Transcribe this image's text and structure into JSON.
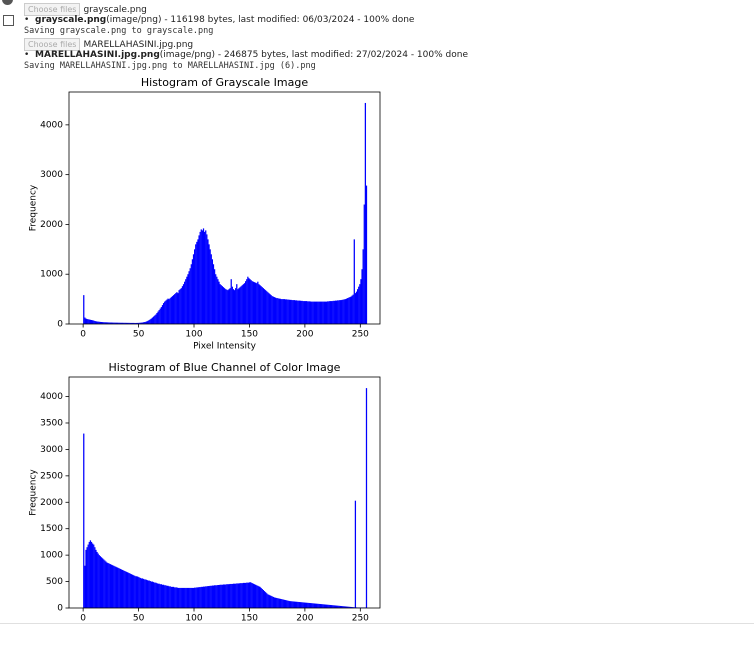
{
  "uploads": [
    {
      "button": "Choose files",
      "filename": "grayscale.png",
      "name": "grayscale.png",
      "meta": "(image/png) - 116198 bytes, last modified: 06/03/2024 - 100% done",
      "saving": "Saving grayscale.png to grayscale.png"
    },
    {
      "button": "Choose files",
      "filename": "MARELLAHASINI.jpg.png",
      "name": "MARELLAHASINI.jpg.png",
      "meta": "(image/png) - 246875 bytes, last modified: 27/02/2024 - 100% done",
      "saving": "Saving MARELLAHASINI.jpg.png to MARELLAHASINI.jpg (6).png"
    }
  ],
  "chart_data": [
    {
      "type": "histogram",
      "title": "Histogram of Grayscale Image",
      "xlabel": "Pixel Intensity",
      "ylabel": "Frequency",
      "color": "#0000ff",
      "xlim": [
        -12.75,
        267.75
      ],
      "ylim": [
        0,
        4660
      ],
      "xticks": [
        0,
        50,
        100,
        150,
        200,
        250
      ],
      "yticks": [
        0,
        1000,
        2000,
        3000,
        4000
      ],
      "bins": [
        0,
        1,
        2,
        3,
        4,
        5,
        6,
        7,
        8,
        9,
        10,
        11,
        12,
        13,
        14,
        15,
        16,
        17,
        18,
        19,
        20,
        21,
        22,
        23,
        24,
        25,
        26,
        27,
        28,
        29,
        30,
        31,
        32,
        33,
        34,
        35,
        36,
        37,
        38,
        39,
        40,
        41,
        42,
        43,
        44,
        45,
        46,
        47,
        48,
        49,
        50,
        51,
        52,
        53,
        54,
        55,
        56,
        57,
        58,
        59,
        60,
        61,
        62,
        63,
        64,
        65,
        66,
        67,
        68,
        69,
        70,
        71,
        72,
        73,
        74,
        75,
        76,
        77,
        78,
        79,
        80,
        81,
        82,
        83,
        84,
        85,
        86,
        87,
        88,
        89,
        90,
        91,
        92,
        93,
        94,
        95,
        96,
        97,
        98,
        99,
        100,
        101,
        102,
        103,
        104,
        105,
        106,
        107,
        108,
        109,
        110,
        111,
        112,
        113,
        114,
        115,
        116,
        117,
        118,
        119,
        120,
        121,
        122,
        123,
        124,
        125,
        126,
        127,
        128,
        129,
        130,
        131,
        132,
        133,
        134,
        135,
        136,
        137,
        138,
        139,
        140,
        141,
        142,
        143,
        144,
        145,
        146,
        147,
        148,
        149,
        150,
        151,
        152,
        153,
        154,
        155,
        156,
        157,
        158,
        159,
        160,
        161,
        162,
        163,
        164,
        165,
        166,
        167,
        168,
        169,
        170,
        171,
        172,
        173,
        174,
        175,
        176,
        177,
        178,
        179,
        180,
        181,
        182,
        183,
        184,
        185,
        186,
        187,
        188,
        189,
        190,
        191,
        192,
        193,
        194,
        195,
        196,
        197,
        198,
        199,
        200,
        201,
        202,
        203,
        204,
        205,
        206,
        207,
        208,
        209,
        210,
        211,
        212,
        213,
        214,
        215,
        216,
        217,
        218,
        219,
        220,
        221,
        222,
        223,
        224,
        225,
        226,
        227,
        228,
        229,
        230,
        231,
        232,
        233,
        234,
        235,
        236,
        237,
        238,
        239,
        240,
        241,
        242,
        243,
        244,
        245,
        246,
        247,
        248,
        249,
        250,
        251,
        252,
        253,
        254,
        255,
        256
      ],
      "values": [
        580,
        130,
        110,
        100,
        95,
        90,
        85,
        80,
        75,
        70,
        60,
        55,
        50,
        48,
        45,
        42,
        40,
        38,
        36,
        35,
        34,
        33,
        32,
        31,
        30,
        30,
        29,
        28,
        28,
        27,
        27,
        26,
        26,
        25,
        25,
        25,
        24,
        24,
        24,
        23,
        23,
        23,
        22,
        22,
        22,
        22,
        21,
        21,
        22,
        22,
        24,
        26,
        28,
        30,
        35,
        40,
        45,
        55,
        65,
        80,
        95,
        110,
        130,
        150,
        170,
        190,
        220,
        250,
        280,
        310,
        340,
        380,
        420,
        450,
        470,
        490,
        510,
        500,
        520,
        540,
        560,
        580,
        600,
        620,
        640,
        620,
        680,
        700,
        720,
        760,
        800,
        850,
        900,
        950,
        1000,
        1060,
        1120,
        1200,
        1300,
        1400,
        1500,
        1600,
        1650,
        1700,
        1780,
        1850,
        1900,
        1880,
        1920,
        1850,
        1880,
        1800,
        1700,
        1600,
        1500,
        1400,
        1300,
        1200,
        1100,
        1000,
        950,
        900,
        850,
        800,
        780,
        760,
        740,
        720,
        700,
        690,
        680,
        700,
        720,
        900,
        750,
        700,
        680,
        720,
        800,
        700,
        720,
        740,
        760,
        780,
        800,
        820,
        860,
        900,
        950,
        920,
        900,
        880,
        860,
        850,
        840,
        830,
        820,
        850,
        800,
        780,
        760,
        740,
        720,
        700,
        680,
        660,
        640,
        620,
        600,
        580,
        560,
        550,
        540,
        530,
        520,
        520,
        510,
        510,
        500,
        500,
        500,
        500,
        495,
        495,
        490,
        490,
        485,
        485,
        480,
        480,
        480,
        475,
        475,
        470,
        470,
        470,
        465,
        465,
        460,
        460,
        460,
        460,
        455,
        455,
        455,
        450,
        450,
        450,
        450,
        450,
        450,
        450,
        450,
        450,
        450,
        450,
        450,
        450,
        450,
        450,
        455,
        455,
        460,
        460,
        460,
        465,
        465,
        470,
        470,
        475,
        475,
        480,
        480,
        485,
        490,
        495,
        500,
        510,
        520,
        530,
        540,
        550,
        570,
        590,
        1700,
        620,
        650,
        700,
        750,
        800,
        900,
        1100,
        1500,
        2400,
        4440,
        2780
      ]
    },
    {
      "type": "histogram",
      "title": "Histogram of Blue Channel of Color Image",
      "ylabel": "Frequency",
      "color": "#0000ff",
      "xlim": [
        -12.75,
        267.75
      ],
      "ylim": [
        0,
        4370
      ],
      "xticks": [
        0,
        50,
        100,
        150,
        200,
        250
      ],
      "yticks": [
        0,
        500,
        1000,
        1500,
        2000,
        2500,
        3000,
        3500,
        4000
      ],
      "bins": [
        0,
        1,
        2,
        3,
        4,
        5,
        6,
        7,
        8,
        9,
        10,
        11,
        12,
        13,
        14,
        15,
        16,
        17,
        18,
        19,
        20,
        21,
        22,
        23,
        24,
        25,
        26,
        27,
        28,
        29,
        30,
        31,
        32,
        33,
        34,
        35,
        36,
        37,
        38,
        39,
        40,
        41,
        42,
        43,
        44,
        45,
        46,
        47,
        48,
        49,
        50,
        51,
        52,
        53,
        54,
        55,
        56,
        57,
        58,
        59,
        60,
        61,
        62,
        63,
        64,
        65,
        66,
        67,
        68,
        69,
        70,
        71,
        72,
        73,
        74,
        75,
        76,
        77,
        78,
        79,
        80,
        81,
        82,
        83,
        84,
        85,
        86,
        87,
        88,
        89,
        90,
        91,
        92,
        93,
        94,
        95,
        96,
        97,
        98,
        99,
        100,
        101,
        102,
        103,
        104,
        105,
        106,
        107,
        108,
        109,
        110,
        111,
        112,
        113,
        114,
        115,
        116,
        117,
        118,
        119,
        120,
        121,
        122,
        123,
        124,
        125,
        126,
        127,
        128,
        129,
        130,
        131,
        132,
        133,
        134,
        135,
        136,
        137,
        138,
        139,
        140,
        141,
        142,
        143,
        144,
        145,
        146,
        147,
        148,
        149,
        150,
        151,
        152,
        153,
        154,
        155,
        156,
        157,
        158,
        159,
        160,
        161,
        162,
        163,
        164,
        165,
        166,
        167,
        168,
        169,
        170,
        171,
        172,
        173,
        174,
        175,
        176,
        177,
        178,
        179,
        180,
        181,
        182,
        183,
        184,
        185,
        186,
        187,
        188,
        189,
        190,
        191,
        192,
        193,
        194,
        195,
        196,
        197,
        198,
        199,
        200,
        201,
        202,
        203,
        204,
        205,
        206,
        207,
        208,
        209,
        210,
        211,
        212,
        213,
        214,
        215,
        216,
        217,
        218,
        219,
        220,
        221,
        222,
        223,
        224,
        225,
        226,
        227,
        228,
        229,
        230,
        231,
        232,
        233,
        234,
        235,
        236,
        237,
        238,
        239,
        240,
        241,
        242,
        243,
        244,
        245,
        246,
        247,
        248,
        249,
        250,
        251,
        252,
        253,
        254,
        255,
        256
      ],
      "values": [
        3300,
        800,
        1100,
        1150,
        1200,
        1250,
        1280,
        1250,
        1220,
        1200,
        1150,
        1100,
        1060,
        1030,
        1000,
        980,
        960,
        940,
        920,
        900,
        880,
        860,
        850,
        840,
        830,
        820,
        810,
        800,
        790,
        780,
        770,
        760,
        750,
        740,
        730,
        720,
        710,
        700,
        690,
        680,
        670,
        660,
        650,
        640,
        630,
        620,
        610,
        600,
        600,
        590,
        580,
        570,
        560,
        560,
        550,
        540,
        540,
        530,
        520,
        520,
        510,
        500,
        500,
        490,
        480,
        480,
        470,
        460,
        460,
        450,
        450,
        440,
        440,
        430,
        430,
        420,
        420,
        410,
        410,
        400,
        400,
        400,
        390,
        390,
        390,
        380,
        380,
        380,
        380,
        380,
        380,
        380,
        380,
        380,
        380,
        380,
        380,
        380,
        380,
        380,
        385,
        385,
        390,
        390,
        395,
        395,
        400,
        400,
        405,
        405,
        410,
        410,
        415,
        415,
        420,
        420,
        425,
        425,
        430,
        430,
        430,
        435,
        435,
        440,
        440,
        440,
        445,
        445,
        445,
        450,
        450,
        450,
        455,
        455,
        455,
        460,
        460,
        460,
        465,
        465,
        465,
        470,
        470,
        470,
        475,
        475,
        475,
        480,
        480,
        480,
        490,
        480,
        470,
        460,
        450,
        440,
        430,
        420,
        410,
        400,
        380,
        360,
        340,
        320,
        300,
        280,
        260,
        250,
        240,
        230,
        220,
        210,
        200,
        195,
        190,
        185,
        180,
        175,
        170,
        165,
        160,
        155,
        150,
        145,
        140,
        135,
        130,
        128,
        126,
        124,
        122,
        120,
        118,
        116,
        114,
        112,
        110,
        108,
        106,
        104,
        102,
        100,
        98,
        96,
        94,
        92,
        90,
        88,
        86,
        84,
        82,
        80,
        78,
        76,
        74,
        72,
        70,
        68,
        66,
        64,
        62,
        60,
        58,
        56,
        54,
        52,
        50,
        48,
        46,
        44,
        42,
        40,
        38,
        36,
        34,
        32,
        30,
        28,
        26,
        24,
        22,
        20,
        18,
        16,
        14,
        2030,
        12,
        10,
        10,
        10,
        10,
        10,
        10,
        10,
        10,
        4160
      ]
    }
  ]
}
